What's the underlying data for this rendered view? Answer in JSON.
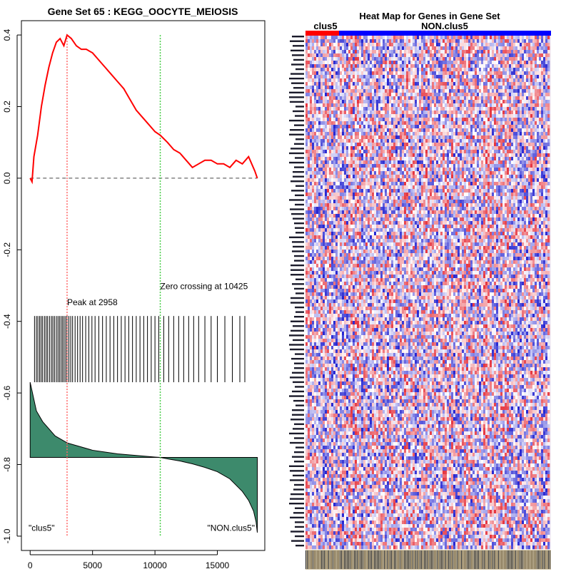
{
  "chart_data": [
    {
      "type": "line",
      "title": "Gene Set  65 : KEGG_OOCYTE_MEIOSIS",
      "x_ticks": [
        0,
        5000,
        10000,
        15000
      ],
      "y_ticks": [
        0.4,
        0.2,
        0.0,
        -0.2,
        -0.4,
        -0.6,
        -0.8,
        -1.0
      ],
      "y_tick_labels": [
        "0.4",
        "0.2",
        "0.0",
        "-0.2",
        "-0.4",
        "-0.6",
        "-0.8",
        "-1.0"
      ],
      "xlim": [
        -700,
        18800
      ],
      "ylim": [
        -1.04,
        0.44
      ],
      "running_es": {
        "x": [
          0,
          150,
          300,
          600,
          900,
          1200,
          1500,
          1800,
          2100,
          2400,
          2700,
          2958,
          3300,
          3700,
          4100,
          4500,
          5000,
          5500,
          6000,
          6500,
          7000,
          7500,
          8000,
          8500,
          9000,
          9500,
          10000,
          10425,
          11000,
          11500,
          12000,
          12500,
          13000,
          13500,
          14000,
          14500,
          15000,
          15500,
          16000,
          16500,
          17000,
          17500,
          18000,
          18200
        ],
        "y": [
          0.0,
          -0.01,
          0.06,
          0.12,
          0.2,
          0.26,
          0.31,
          0.35,
          0.38,
          0.39,
          0.37,
          0.4,
          0.39,
          0.37,
          0.36,
          0.36,
          0.35,
          0.33,
          0.31,
          0.29,
          0.27,
          0.25,
          0.22,
          0.19,
          0.17,
          0.15,
          0.13,
          0.12,
          0.1,
          0.08,
          0.07,
          0.05,
          0.03,
          0.04,
          0.05,
          0.05,
          0.04,
          0.04,
          0.03,
          0.05,
          0.04,
          0.06,
          0.02,
          0.0
        ]
      },
      "zero_line": 0.0,
      "peak": {
        "x": 2958,
        "label": "Peak at 2958"
      },
      "zero_crossing": {
        "x": 10425,
        "label": "Zero crossing at 10425"
      },
      "hit_positions": [
        350,
        500,
        620,
        760,
        880,
        1000,
        1150,
        1280,
        1400,
        1550,
        1700,
        1820,
        1950,
        2100,
        2230,
        2350,
        2480,
        2600,
        2720,
        2850,
        2958,
        3100,
        3250,
        3400,
        3600,
        3800,
        4000,
        4200,
        4450,
        4700,
        4950,
        5200,
        5500,
        5800,
        6100,
        6400,
        6700,
        7000,
        7300,
        7600,
        7900,
        8200,
        8500,
        8800,
        9100,
        9400,
        9700,
        10000,
        10300,
        10700,
        11100,
        11500,
        11900,
        12300,
        12700,
        13100,
        13500,
        14000,
        14500,
        15000,
        15600,
        16200,
        16800,
        17200
      ],
      "hit_band": {
        "ymin": -0.57,
        "ymax": -0.385
      },
      "metric": {
        "baseline": -0.78,
        "x": [
          0,
          500,
          1000,
          2000,
          3000,
          4000,
          5000,
          6000,
          7000,
          8000,
          9000,
          10000,
          10425,
          11000,
          12000,
          13000,
          14000,
          15000,
          16000,
          17000,
          17500,
          17900,
          18100,
          18200
        ],
        "y": [
          -0.57,
          -0.65,
          -0.68,
          -0.72,
          -0.74,
          -0.75,
          -0.76,
          -0.765,
          -0.77,
          -0.773,
          -0.776,
          -0.779,
          -0.78,
          -0.784,
          -0.79,
          -0.798,
          -0.808,
          -0.82,
          -0.84,
          -0.875,
          -0.9,
          -0.93,
          -0.96,
          -0.99
        ]
      },
      "group_labels": [
        "\"clus5\"",
        "\"NON.clus5\""
      ],
      "colors": {
        "running_es": "#ff0000",
        "metric_fill": "#3d8a6c",
        "peak_line": "#ff6666",
        "zero_cross_line": "#44cc44",
        "hits": "#000000"
      }
    },
    {
      "type": "heatmap",
      "title": "Heat Map for Genes in Gene Set",
      "groups": [
        "clus5",
        "NON.clus5"
      ],
      "group_colors": [
        "#ff0000",
        "#0000ff"
      ],
      "colors": {
        "high": "#e8303a",
        "mid": "#ffffff",
        "low": "#2a2ad0"
      }
    }
  ]
}
